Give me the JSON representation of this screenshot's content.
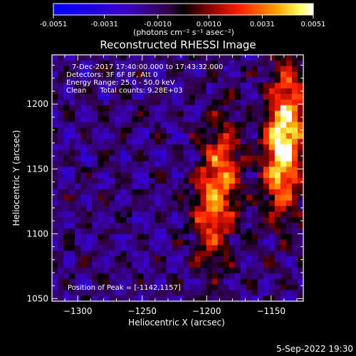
{
  "colorbar": {
    "ticks": [
      "-0.0051",
      "-0.0031",
      "-0.0010",
      "0.0010",
      "0.0031",
      "0.0051"
    ],
    "tick_values": [
      -0.0051,
      -0.0031,
      -0.001,
      0.001,
      0.0031,
      0.0051
    ],
    "unit_label": "(photons cm⁻² s⁻¹ asec⁻²)",
    "range": [
      -0.0051,
      0.0051
    ]
  },
  "plot": {
    "title": "Reconstructed RHESSI Image",
    "info_lines": [
      "7-Dec-2017 17:40:00.000 to 17:43:32.000",
      "Detectors: 3F 6F 8F, Att 0",
      "Energy Range: 25.0 - 50.0 keV",
      "Clean      Total counts: 9.28E+03"
    ],
    "peak_label": "Position of Peak = [-1142,1157]"
  },
  "footer": {
    "date": "5-Sep-2022 19:30"
  },
  "chart_data": {
    "type": "heatmap",
    "title": "Reconstructed RHESSI Image",
    "xlabel": "Heliocentric X (arcsec)",
    "ylabel": "Heliocentric Y (arcsec)",
    "xlim": [
      -1320,
      -1125
    ],
    "ylim": [
      1048,
      1238
    ],
    "x_ticks": [
      -1300,
      -1250,
      -1200,
      -1150
    ],
    "y_ticks": [
      1050,
      1100,
      1150,
      1200
    ],
    "colorscale": "RHESSI blue-black-red-yellow-white",
    "value_range": [
      -0.0051,
      0.0051
    ],
    "peak": [
      -1142,
      1157
    ],
    "sources": [
      {
        "x": -1142,
        "y": 1157,
        "value": 0.0051
      },
      {
        "x": -1197,
        "y": 1120,
        "value": 0.0032
      },
      {
        "x": -1185,
        "y": 1150,
        "value": 0.0028
      },
      {
        "x": -1135,
        "y": 1200,
        "value": 0.003
      }
    ]
  }
}
